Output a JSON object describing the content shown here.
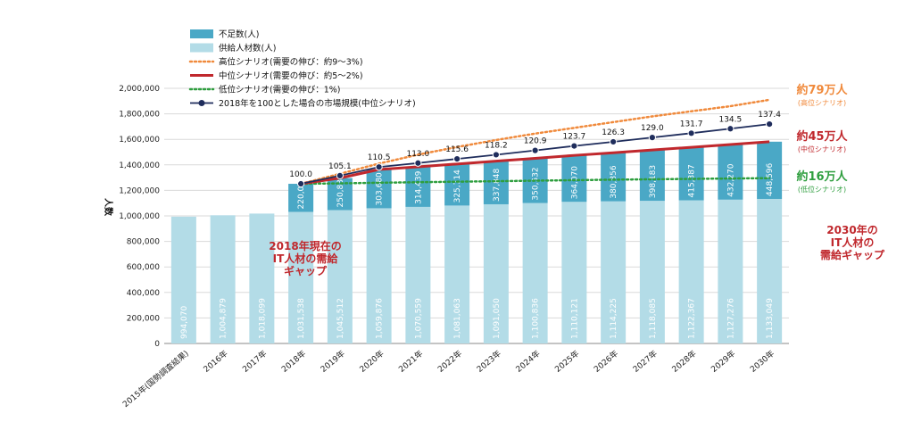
{
  "chart_data": {
    "type": "bar",
    "stacked": true,
    "ylabel": "人数",
    "ylim": [
      0,
      2000000
    ],
    "yticks": [
      0,
      200000,
      400000,
      600000,
      800000,
      1000000,
      1200000,
      1400000,
      1600000,
      1800000,
      2000000
    ],
    "ytick_labels": [
      "0",
      "200,000",
      "400,000",
      "600,000",
      "800,000",
      "1,000,000",
      "1,200,000",
      "1,400,000",
      "1,600,000",
      "1,800,000",
      "2,000,000"
    ],
    "categories": [
      "2015年(国勢調査結果)",
      "2016年",
      "2017年",
      "2018年",
      "2019年",
      "2020年",
      "2021年",
      "2022年",
      "2023年",
      "2024年",
      "2025年",
      "2026年",
      "2027年",
      "2028年",
      "2029年",
      "2030年"
    ],
    "series": [
      {
        "name": "供給人材数(人)",
        "color": "#b3dce7",
        "values": [
          994070,
          1004879,
          1018099,
          1031538,
          1045512,
          1059876,
          1070559,
          1081063,
          1091050,
          1100836,
          1110121,
          1114225,
          1118085,
          1122367,
          1127276,
          1133049
        ],
        "labels": [
          "994,070",
          "1,004,879",
          "1,018,099",
          "1,031,538",
          "1,045,512",
          "1,059,876",
          "1,070,559",
          "1,081,063",
          "1,091,050",
          "1,100,836",
          "1,110,121",
          "1,114,225",
          "1,118,085",
          "1,122,367",
          "1,127,276",
          "1,133,049"
        ]
      },
      {
        "name": "不足数(人)",
        "color": "#4aa8c6",
        "values": [
          null,
          null,
          null,
          220000,
          250835,
          303680,
          314439,
          325714,
          337848,
          350532,
          364070,
          380856,
          398183,
          415387,
          432270,
          448596
        ],
        "labels": [
          "",
          "",
          "",
          "220,000",
          "250,835",
          "303,680",
          "314,439",
          "325,714",
          "337,848",
          "350,532",
          "364,070",
          "380,856",
          "398,183",
          "415,387",
          "432,270",
          "448,596"
        ]
      }
    ],
    "lines": [
      {
        "name": "高位シナリオ(需要の伸び：約9～3%)",
        "color": "#f08a3c",
        "style": "dotted",
        "values": [
          null,
          null,
          null,
          1251538,
          1330000,
          1410000,
          1480000,
          1540000,
          1595000,
          1645000,
          1690000,
          1735000,
          1780000,
          1820000,
          1860000,
          1910000
        ]
      },
      {
        "name": "中位シナリオ(需要の伸び：約5～2%)",
        "color": "#c0282d",
        "style": "solid",
        "values": [
          null,
          null,
          null,
          1251538,
          1296347,
          1363556,
          1384998,
          1406777,
          1428898,
          1451368,
          1474191,
          1495081,
          1516268,
          1537754,
          1559546,
          1581645
        ]
      },
      {
        "name": "低位シナリオ(需要の伸び：1%)",
        "color": "#2e9e3e",
        "style": "dotted",
        "values": [
          null,
          null,
          null,
          1251538,
          1255000,
          1260000,
          1264000,
          1268000,
          1272000,
          1276000,
          1280000,
          1284000,
          1287000,
          1290000,
          1293000,
          1296000
        ]
      },
      {
        "name": "2018年を100とした場合の市場規模(中位シナリオ)",
        "color": "#1f2d5c",
        "style": "solid-markers",
        "index_labels": [
          "100.0",
          "105.1",
          "110.5",
          "113.0",
          "115.6",
          "118.2",
          "120.9",
          "123.7",
          "126.3",
          "129.0",
          "131.7",
          "134.5",
          "137.4"
        ],
        "index_values": [
          100.0,
          105.1,
          110.5,
          113.0,
          115.6,
          118.2,
          120.9,
          123.7,
          126.3,
          129.0,
          131.7,
          134.5,
          137.4
        ]
      }
    ],
    "legend": {
      "placement": "top-left",
      "entries": [
        {
          "label": "不足数(人)",
          "color": "#4aa8c6",
          "kind": "box"
        },
        {
          "label": "供給人材数(人)",
          "color": "#b3dce7",
          "kind": "box"
        },
        {
          "label": "高位シナリオ(需要の伸び：約9～3%)",
          "color": "#f08a3c",
          "kind": "dotted"
        },
        {
          "label": "中位シナリオ(需要の伸び：約5～2%)",
          "color": "#c0282d",
          "kind": "line"
        },
        {
          "label": "低位シナリオ(需要の伸び：1%)",
          "color": "#2e9e3e",
          "kind": "dotted"
        },
        {
          "label": "2018年を100とした場合の市場規模(中位シナリオ)",
          "color": "#1f2d5c",
          "kind": "marker-line"
        }
      ]
    },
    "annotations": {
      "gap_2018": [
        "2018年現在の",
        "IT人材の需給",
        "ギャップ"
      ],
      "gap_2030": [
        "2030年の",
        "IT人材の",
        "需給ギャップ"
      ],
      "high": {
        "value": "約79万人",
        "sub": "(高位シナリオ)",
        "color": "#f08a3c"
      },
      "mid": {
        "value": "約45万人",
        "sub": "(中位シナリオ)",
        "color": "#c0282d"
      },
      "low": {
        "value": "約16万人",
        "sub": "(低位シナリオ)",
        "color": "#2e9e3e"
      }
    }
  }
}
